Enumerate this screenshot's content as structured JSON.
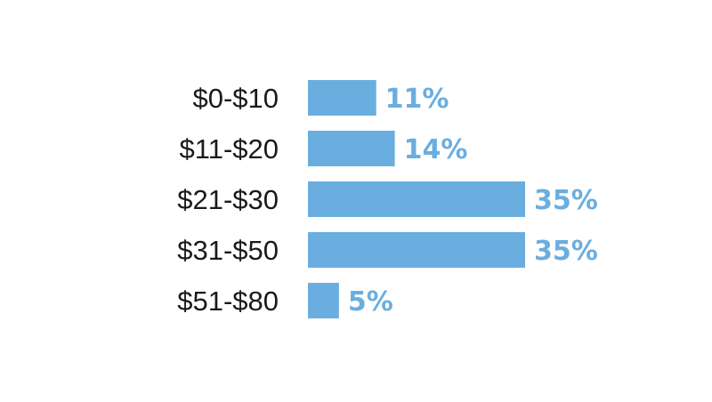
{
  "chart_data": {
    "type": "bar",
    "orientation": "horizontal",
    "categories": [
      "$0-$10",
      "$11-$20",
      "$21-$30",
      "$31-$50",
      "$51-$80"
    ],
    "values": [
      11,
      14,
      35,
      35,
      5
    ],
    "value_labels": [
      "11%",
      "14%",
      "35%",
      "35%",
      "5%"
    ],
    "unit": "%",
    "title": "",
    "xlabel": "",
    "ylabel": "",
    "xlim": [
      0,
      35
    ],
    "grid": false,
    "legend": "none",
    "bar_color": "#6aaee0",
    "label_color": "#6aaee0"
  }
}
